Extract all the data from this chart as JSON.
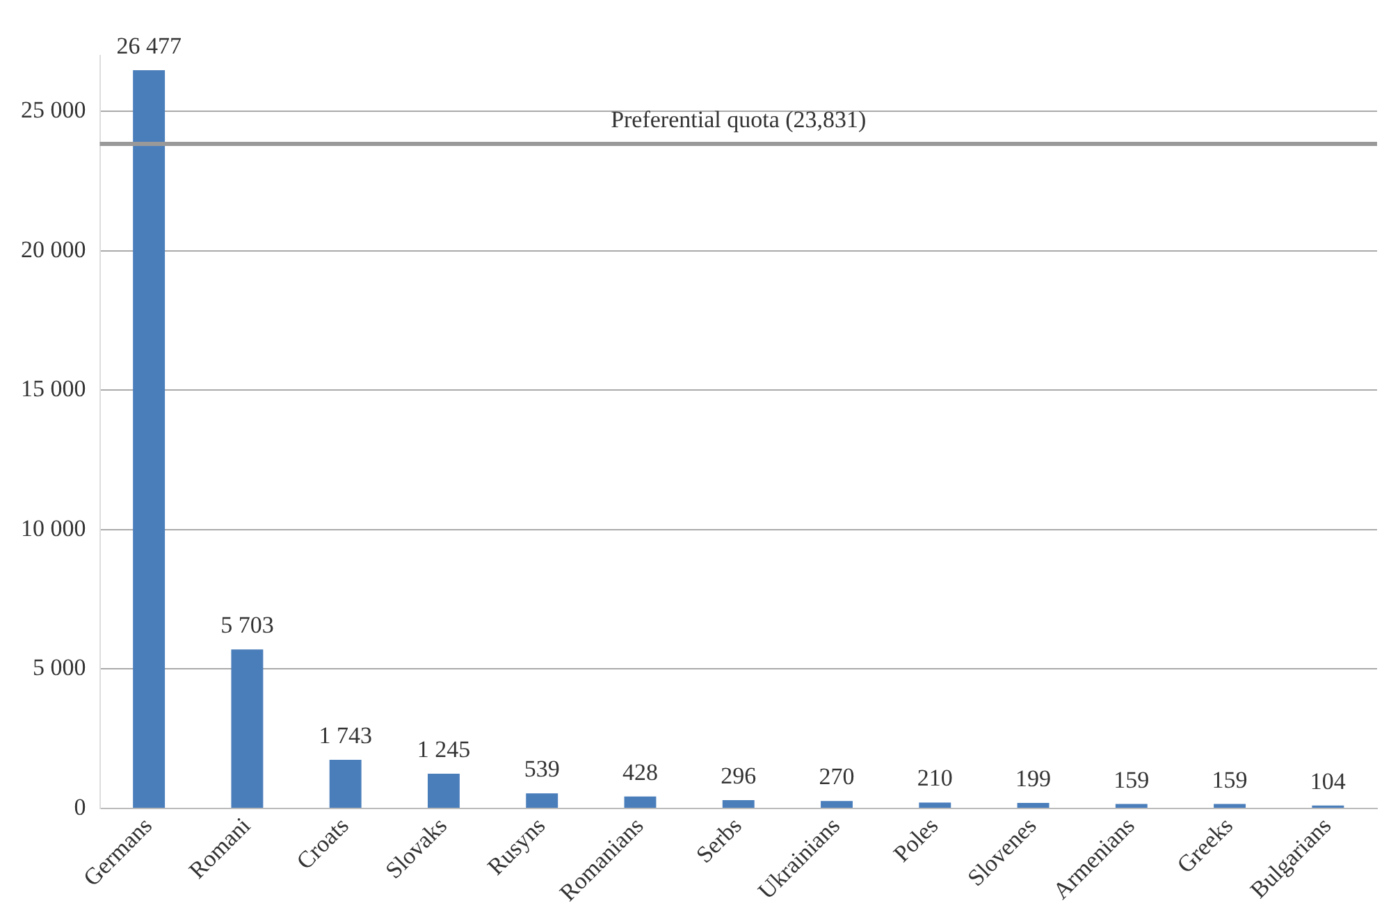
{
  "chart_data": {
    "type": "bar",
    "categories": [
      "Germans",
      "Romani",
      "Croats",
      "Slovaks",
      "Rusyns",
      "Romanians",
      "Serbs",
      "Ukrainians",
      "Poles",
      "Slovenes",
      "Armenians",
      "Greeks",
      "Bulgarians"
    ],
    "values": [
      26477,
      5703,
      1743,
      1245,
      539,
      428,
      296,
      270,
      210,
      199,
      159,
      159,
      104
    ],
    "value_labels": [
      "26 477",
      "5 703",
      "1 743",
      "1 245",
      "539",
      "428",
      "296",
      "270",
      "210",
      "199",
      "159",
      "159",
      "104"
    ],
    "color": "#4a7ebb",
    "ylim": [
      0,
      27000
    ],
    "yticks": [
      {
        "value": 0,
        "label": "0"
      },
      {
        "value": 5000,
        "label": "5 000"
      },
      {
        "value": 10000,
        "label": "10 000"
      },
      {
        "value": 15000,
        "label": "15 000"
      },
      {
        "value": 20000,
        "label": "20 000"
      },
      {
        "value": 25000,
        "label": "25 000"
      }
    ],
    "grid": "y",
    "legend": false,
    "ref_lines": [
      {
        "axis": "y",
        "value": 23831,
        "label": "Preferential quota (23,831)",
        "color": "#999999"
      }
    ]
  }
}
